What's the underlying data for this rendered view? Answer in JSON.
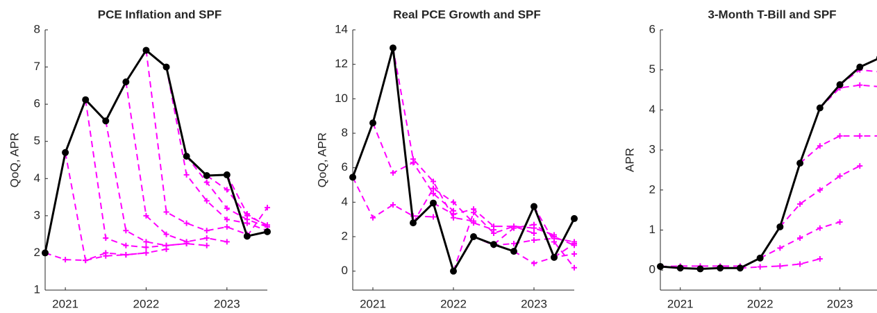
{
  "chart_data": [
    {
      "type": "line",
      "title": "PCE Inflation and SPF",
      "ylabel": "QoQ, APR",
      "x": [
        2020.75,
        2021,
        2021.25,
        2021.5,
        2021.75,
        2022,
        2022.25,
        2022.5,
        2022.75,
        2023,
        2023.25,
        2023.5
      ],
      "xlim": [
        2020.75,
        2023.5
      ],
      "xticks": [
        2021,
        2022,
        2023
      ],
      "ylim": [
        1,
        8
      ],
      "yticks": [
        1,
        2,
        3,
        4,
        5,
        6,
        7,
        8
      ],
      "series": [
        {
          "color": "#ff00ff",
          "style": "dashed",
          "marker": "+",
          "values": [
            2.0,
            1.82,
            1.8,
            1.92,
            1.95,
            2.0,
            null,
            null,
            null,
            null,
            null,
            null
          ]
        },
        {
          "color": "#ff00ff",
          "style": "dashed",
          "marker": "+",
          "values": [
            null,
            4.7,
            1.8,
            2.0,
            1.95,
            2.0,
            2.1,
            null,
            null,
            null,
            null,
            null
          ]
        },
        {
          "color": "#ff00ff",
          "style": "dashed",
          "marker": "+",
          "values": [
            null,
            null,
            6.12,
            2.4,
            2.2,
            2.15,
            2.2,
            2.25,
            null,
            null,
            null,
            null
          ]
        },
        {
          "color": "#ff00ff",
          "style": "dashed",
          "marker": "+",
          "values": [
            null,
            null,
            null,
            5.55,
            2.6,
            2.3,
            2.2,
            2.25,
            2.2,
            null,
            null,
            null
          ]
        },
        {
          "color": "#ff00ff",
          "style": "dashed",
          "marker": "+",
          "values": [
            null,
            null,
            null,
            null,
            6.6,
            3.0,
            2.5,
            2.3,
            2.4,
            2.3,
            null,
            null
          ]
        },
        {
          "color": "#ff00ff",
          "style": "dashed",
          "marker": "+",
          "values": [
            null,
            null,
            null,
            null,
            null,
            7.45,
            3.1,
            2.8,
            2.6,
            2.7,
            2.5,
            null
          ]
        },
        {
          "color": "#ff00ff",
          "style": "dashed",
          "marker": "+",
          "values": [
            null,
            null,
            null,
            null,
            null,
            null,
            7.0,
            4.1,
            3.4,
            2.9,
            2.8,
            2.6
          ]
        },
        {
          "color": "#ff00ff",
          "style": "dashed",
          "marker": "+",
          "values": [
            null,
            null,
            null,
            null,
            null,
            null,
            null,
            4.6,
            3.9,
            3.2,
            2.9,
            2.7
          ]
        },
        {
          "color": "#ff00ff",
          "style": "dashed",
          "marker": "+",
          "values": [
            null,
            null,
            null,
            null,
            null,
            null,
            null,
            null,
            4.08,
            3.7,
            3.0,
            2.75
          ]
        },
        {
          "color": "#ff00ff",
          "style": "dashed",
          "marker": "+",
          "values": [
            null,
            null,
            null,
            null,
            null,
            null,
            null,
            null,
            null,
            4.1,
            3.05,
            2.7
          ]
        },
        {
          "color": "#ff00ff",
          "style": "dashed",
          "marker": "+",
          "values": [
            null,
            null,
            null,
            null,
            null,
            null,
            null,
            null,
            null,
            null,
            2.45,
            3.22
          ]
        },
        {
          "color": "#000000",
          "style": "solid",
          "marker": "o",
          "values": [
            2.0,
            4.7,
            6.12,
            5.55,
            6.6,
            7.45,
            7.0,
            4.6,
            4.08,
            4.1,
            2.45,
            2.57
          ]
        }
      ]
    },
    {
      "type": "line",
      "title": "Real PCE Growth and SPF",
      "ylabel": "QoQ, APR",
      "x": [
        2020.75,
        2021,
        2021.25,
        2021.5,
        2021.75,
        2022,
        2022.25,
        2022.5,
        2022.75,
        2023,
        2023.25,
        2023.5
      ],
      "xlim": [
        2020.75,
        2023.5
      ],
      "xticks": [
        2021,
        2022,
        2023
      ],
      "ylim": [
        -1.1,
        14
      ],
      "yticks": [
        0,
        2,
        4,
        6,
        8,
        10,
        12,
        14
      ],
      "series": [
        {
          "color": "#ff00ff",
          "style": "dashed",
          "marker": "+",
          "values": [
            5.45,
            3.1,
            3.85,
            3.2,
            3.15,
            null,
            null,
            null,
            null,
            null,
            null,
            null
          ]
        },
        {
          "color": "#ff00ff",
          "style": "dashed",
          "marker": "+",
          "values": [
            null,
            8.6,
            5.7,
            6.3,
            4.5,
            3.5,
            null,
            null,
            null,
            null,
            null,
            null
          ]
        },
        {
          "color": "#ff00ff",
          "style": "dashed",
          "marker": "+",
          "values": [
            null,
            null,
            12.95,
            6.5,
            5.2,
            3.1,
            2.9,
            null,
            null,
            null,
            null,
            null
          ]
        },
        {
          "color": "#ff00ff",
          "style": "dashed",
          "marker": "+",
          "values": [
            null,
            null,
            null,
            2.8,
            4.8,
            4.0,
            2.8,
            2.4,
            null,
            null,
            null,
            null
          ]
        },
        {
          "color": "#ff00ff",
          "style": "dashed",
          "marker": "+",
          "values": [
            null,
            null,
            null,
            null,
            3.95,
            3.3,
            3.6,
            2.6,
            2.6,
            2.2,
            null,
            null
          ]
        },
        {
          "color": "#ff00ff",
          "style": "dashed",
          "marker": "+",
          "values": [
            null,
            null,
            null,
            null,
            null,
            0,
            3.4,
            2.2,
            2.6,
            2.5,
            2.1,
            null
          ]
        },
        {
          "color": "#ff00ff",
          "style": "dashed",
          "marker": "+",
          "values": [
            null,
            null,
            null,
            null,
            null,
            null,
            2.0,
            1.5,
            1.6,
            1.8,
            1.9,
            1.7
          ]
        },
        {
          "color": "#ff00ff",
          "style": "dashed",
          "marker": "+",
          "values": [
            null,
            null,
            null,
            null,
            null,
            null,
            null,
            1.55,
            2.5,
            2.7,
            2.0,
            1.5
          ]
        },
        {
          "color": "#ff00ff",
          "style": "dashed",
          "marker": "+",
          "values": [
            null,
            null,
            null,
            null,
            null,
            null,
            null,
            null,
            1.15,
            0.45,
            0.8,
            1.0
          ]
        },
        {
          "color": "#ff00ff",
          "style": "dashed",
          "marker": "+",
          "values": [
            null,
            null,
            null,
            null,
            null,
            null,
            null,
            null,
            null,
            3.75,
            1.7,
            0.2
          ]
        },
        {
          "color": "#ff00ff",
          "style": "dashed",
          "marker": "+",
          "values": [
            null,
            null,
            null,
            null,
            null,
            null,
            null,
            null,
            null,
            null,
            0.8,
            1.6
          ]
        },
        {
          "color": "#000000",
          "style": "solid",
          "marker": "o",
          "values": [
            5.45,
            8.6,
            12.95,
            2.8,
            3.95,
            0,
            2.0,
            1.55,
            1.15,
            3.75,
            0.8,
            3.05
          ]
        }
      ]
    },
    {
      "type": "line",
      "title": "3-Month T-Bill and SPF",
      "ylabel": "APR",
      "x": [
        2020.75,
        2021,
        2021.25,
        2021.5,
        2021.75,
        2022,
        2022.25,
        2022.5,
        2022.75,
        2023,
        2023.25,
        2023.5
      ],
      "xlim": [
        2020.75,
        2023.5
      ],
      "xticks": [
        2021,
        2022,
        2023
      ],
      "ylim": [
        -0.5,
        6
      ],
      "yticks": [
        0,
        1,
        2,
        3,
        4,
        5,
        6
      ],
      "series": [
        {
          "color": "#ff00ff",
          "style": "dashed",
          "marker": "+",
          "values": [
            0.09,
            0.1,
            0.1,
            0.1,
            0.1,
            null,
            null,
            null,
            null,
            null,
            null,
            null
          ]
        },
        {
          "color": "#ff00ff",
          "style": "dashed",
          "marker": "+",
          "values": [
            null,
            null,
            null,
            null,
            0.05,
            0.08,
            0.1,
            0.15,
            0.28,
            null,
            null,
            null
          ]
        },
        {
          "color": "#ff00ff",
          "style": "dashed",
          "marker": "+",
          "values": [
            null,
            null,
            null,
            null,
            null,
            0.3,
            0.55,
            0.8,
            1.05,
            1.2,
            null,
            null
          ]
        },
        {
          "color": "#ff00ff",
          "style": "dashed",
          "marker": "+",
          "values": [
            null,
            null,
            null,
            null,
            null,
            null,
            1.08,
            1.65,
            2.0,
            2.35,
            2.6,
            null
          ]
        },
        {
          "color": "#ff00ff",
          "style": "dashed",
          "marker": "+",
          "values": [
            null,
            null,
            null,
            null,
            null,
            null,
            null,
            2.67,
            3.1,
            3.35,
            3.35,
            3.35
          ]
        },
        {
          "color": "#ff00ff",
          "style": "dashed",
          "marker": "+",
          "values": [
            null,
            null,
            null,
            null,
            null,
            null,
            null,
            null,
            4.05,
            4.55,
            4.62,
            4.58
          ]
        },
        {
          "color": "#ff00ff",
          "style": "dashed",
          "marker": "+",
          "values": [
            null,
            null,
            null,
            null,
            null,
            null,
            null,
            null,
            null,
            4.63,
            5.0,
            4.95
          ]
        },
        {
          "color": "#000000",
          "style": "solid",
          "marker": "o",
          "values": [
            0.09,
            0.05,
            0.03,
            0.05,
            0.05,
            0.3,
            1.08,
            2.67,
            4.05,
            4.63,
            5.07,
            5.3
          ]
        }
      ]
    }
  ]
}
